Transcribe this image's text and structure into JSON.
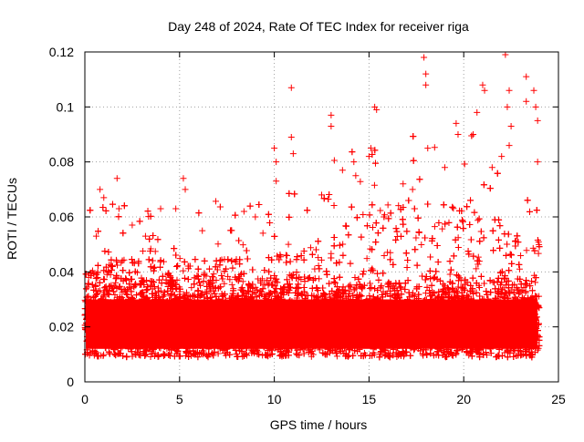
{
  "chart_data": {
    "type": "scatter",
    "title": "Day 248 of 2024, Rate Of TEC Index for receiver riga",
    "xlabel": "GPS time / hours",
    "ylabel": "ROTI / TECUs",
    "xlim": [
      0,
      25
    ],
    "ylim": [
      0,
      0.12
    ],
    "x_ticks": [
      0,
      5,
      10,
      15,
      20,
      25
    ],
    "x_tick_labels": [
      "0",
      "5",
      "10",
      "15",
      "20",
      "25"
    ],
    "y_ticks": [
      0,
      0.02,
      0.04,
      0.06,
      0.08,
      0.1,
      0.12
    ],
    "y_tick_labels": [
      "0",
      "0.02",
      "0.04",
      "0.06",
      "0.08",
      "0.1",
      "0.12"
    ],
    "grid": true,
    "marker": "+",
    "color": "#ff0000",
    "series": [
      {
        "name": "ROTI",
        "description_note": "dense scatter, baseline ~0.01-0.035 across 0-24h with sparse excursions",
        "x": [
          0.2,
          0.6,
          0.8,
          1.0,
          1.7,
          1.8,
          2.5,
          3.2,
          4.0,
          4.8,
          5.2,
          5.3,
          6.2,
          8.4,
          9.0,
          10.0,
          10.1,
          10.1,
          10.9,
          10.9,
          11.0,
          12.5,
          13.0,
          13.0,
          13.6,
          14.2,
          14.3,
          15.0,
          15.1,
          15.3,
          15.4,
          16.8,
          17.3,
          17.9,
          18.0,
          18.0,
          18.1,
          19.0,
          19.6,
          19.7,
          20.5,
          20.7,
          21.0,
          21.1,
          21.5,
          22.0,
          22.2,
          22.3,
          22.4,
          22.4,
          22.5,
          23.3,
          23.3,
          23.7,
          23.8,
          23.9,
          23.9
        ],
        "y": [
          0.038,
          0.053,
          0.07,
          0.067,
          0.074,
          0.063,
          0.057,
          0.053,
          0.063,
          0.063,
          0.074,
          0.07,
          0.055,
          0.062,
          0.06,
          0.085,
          0.08,
          0.073,
          0.107,
          0.089,
          0.083,
          0.068,
          0.097,
          0.093,
          0.077,
          0.08,
          0.075,
          0.082,
          0.085,
          0.1,
          0.099,
          0.072,
          0.07,
          0.118,
          0.112,
          0.108,
          0.085,
          0.078,
          0.094,
          0.09,
          0.09,
          0.098,
          0.108,
          0.106,
          0.078,
          0.082,
          0.119,
          0.1,
          0.106,
          0.086,
          0.093,
          0.111,
          0.102,
          0.106,
          0.1,
          0.095,
          0.08
        ]
      }
    ]
  }
}
